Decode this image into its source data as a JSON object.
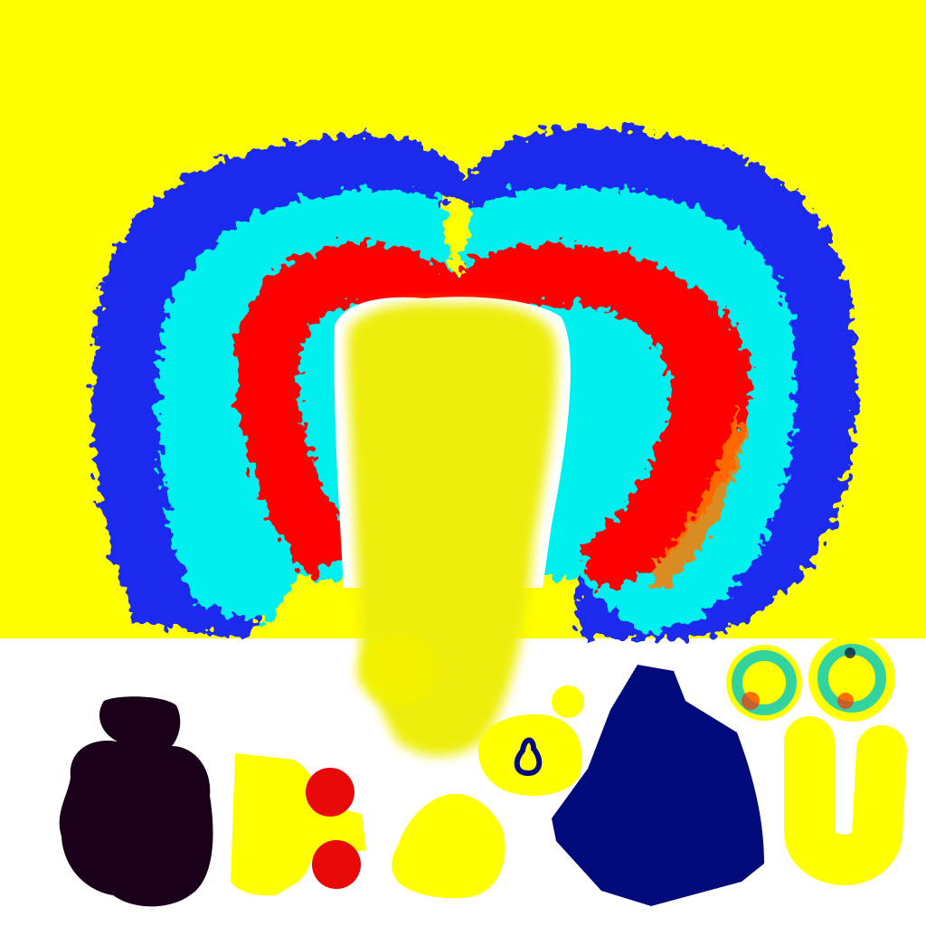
{
  "canvas": {
    "background_top": "#ffff00",
    "background_bottom": "#ffffff"
  },
  "colors": {
    "yellow": "#ffff00",
    "pale_yellow": "#eeee10",
    "blue": "#1a2bf0",
    "cyan": "#00f0f0",
    "red": "#ff0000",
    "orange": "#ff7a00",
    "dark_navy": "#000a7a",
    "black_purple": "#1a0018",
    "spot_red": "#e80808",
    "white": "#ffffff"
  },
  "regions": [
    {
      "name": "blue-outer-band",
      "color": "blue"
    },
    {
      "name": "cyan-middle-band",
      "color": "cyan"
    },
    {
      "name": "red-inner-band",
      "color": "red"
    },
    {
      "name": "central-yellow-blob",
      "color": "pale_yellow"
    },
    {
      "name": "dark-blob",
      "color": "black_purple"
    },
    {
      "name": "yellow-block-with-red-dots",
      "color": "yellow"
    },
    {
      "name": "yellow-mound",
      "color": "yellow"
    },
    {
      "name": "yellow-ring-with-navy-spot",
      "color": "yellow"
    },
    {
      "name": "navy-polygon",
      "color": "dark_navy"
    },
    {
      "name": "yellow-rings-with-spectrum",
      "color": "yellow"
    },
    {
      "name": "yellow-u-shape",
      "color": "yellow"
    }
  ]
}
